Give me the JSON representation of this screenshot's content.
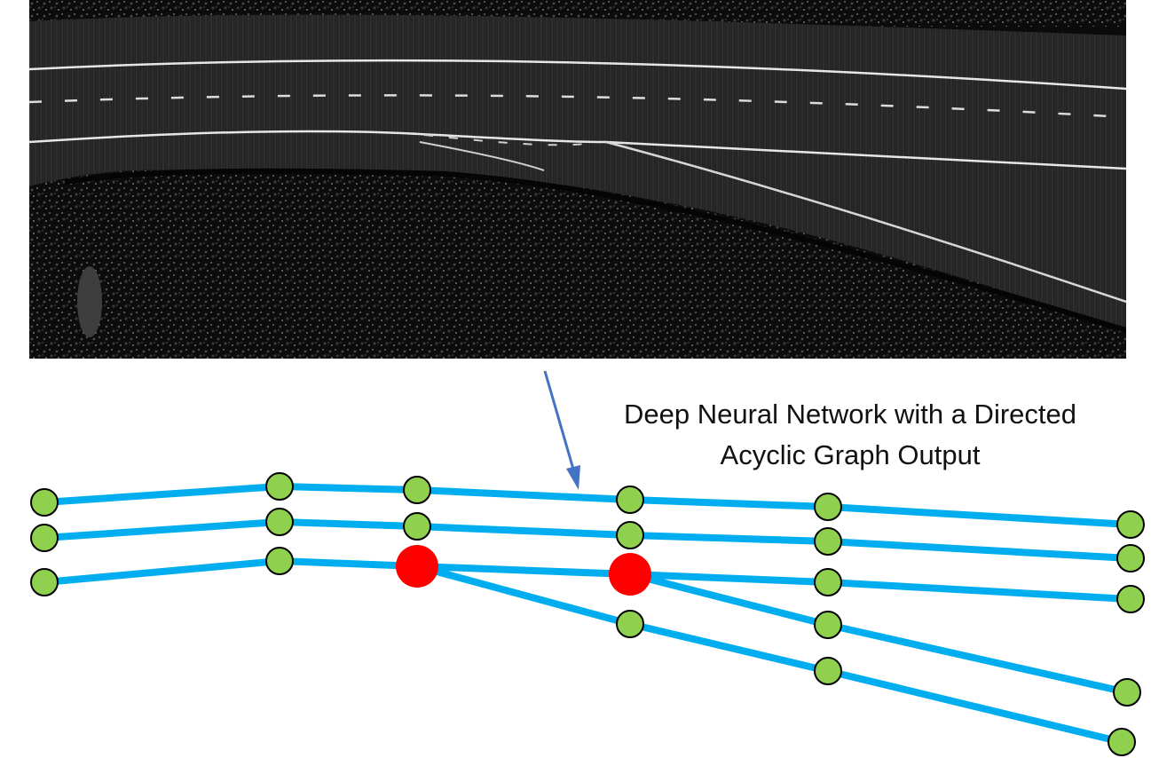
{
  "caption": {
    "line1": "Deep Neural Network with a Directed",
    "line2": "Acyclic Graph Output"
  },
  "colors": {
    "edge": "#00aeef",
    "node_fill": "#8fd14f",
    "branch_node_fill": "#ff0000",
    "arrow": "#4472c4",
    "node_stroke": "#000000"
  },
  "image": {
    "icon": "lidar-intensity-road-icon"
  }
}
